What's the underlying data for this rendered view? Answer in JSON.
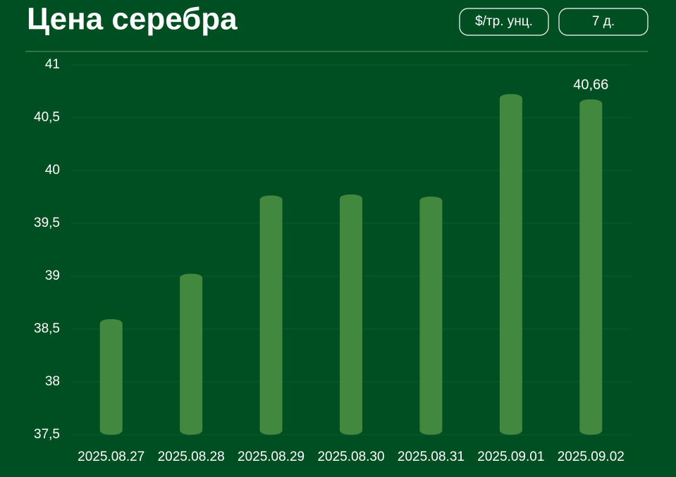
{
  "chart_data": {
    "type": "bar",
    "title": "Цена серебра",
    "categories": [
      "2025.08.27",
      "2025.08.28",
      "2025.08.29",
      "2025.08.30",
      "2025.08.31",
      "2025.09.01",
      "2025.09.02"
    ],
    "values": [
      38.58,
      39.01,
      39.75,
      39.76,
      39.74,
      40.71,
      40.66
    ],
    "value_labels": [
      null,
      null,
      null,
      null,
      null,
      null,
      "40,66"
    ],
    "color": "#43883f",
    "ylim": [
      37.5,
      41
    ],
    "yticks": [
      {
        "value": 37.5,
        "label": "37,5"
      },
      38,
      {
        "value": 38.5,
        "label": "38,5"
      },
      39,
      {
        "value": 39.5,
        "label": "39,5"
      },
      40,
      {
        "value": 40.5,
        "label": "40,5"
      },
      41
    ],
    "grid": true
  },
  "controls": {
    "unit": "$/тр. унц.",
    "period": "7 д."
  }
}
